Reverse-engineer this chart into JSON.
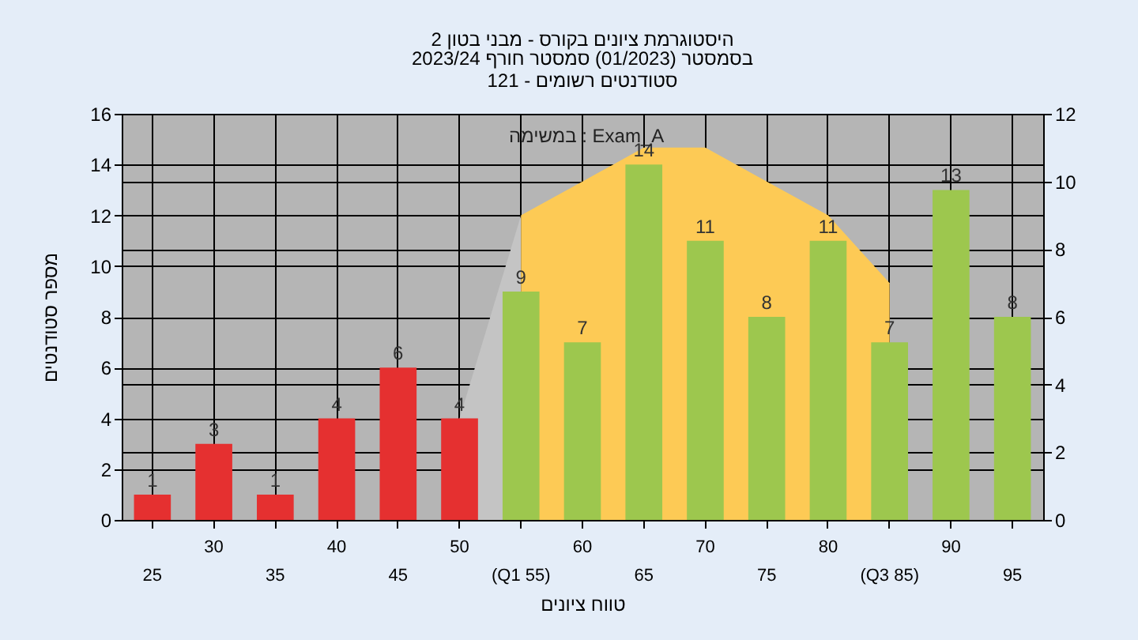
{
  "chart_data": {
    "type": "bar",
    "title": "היסטוגרמת ציונים בקורס - מבני בטון 2",
    "subtitle": "בסמסטר (01/2023) סמסטר חורף 2023/24\nסטודנטים רשומים - 121",
    "xlabel": "טווח ציונים",
    "ylabel": "מספר סטודנטים",
    "annotations": [
      "במשימה : Exam_A"
    ],
    "categories": [
      "25",
      "30",
      "35",
      "40",
      "45",
      "50",
      "(Q1 55)",
      "60",
      "65",
      "70",
      "75",
      "80",
      "(Q3 85)",
      "90",
      "95"
    ],
    "series": [
      {
        "type": "area",
        "axis": "y2",
        "color": "#c4c4c4",
        "values": [
          null,
          null,
          null,
          null,
          null,
          3,
          9,
          null,
          null,
          null,
          null,
          null,
          null,
          null,
          null
        ]
      },
      {
        "type": "area",
        "axis": "y2",
        "color": "#fdca55",
        "values": [
          null,
          null,
          null,
          null,
          null,
          null,
          9,
          10,
          11,
          11,
          10,
          9,
          7,
          null,
          null
        ]
      },
      {
        "colors": [
          "#e53030",
          "#e53030",
          "#e53030",
          "#e53030",
          "#e53030",
          "#e53030",
          "#9dc74e",
          "#9dc74e",
          "#9dc74e",
          "#9dc74e",
          "#9dc74e",
          "#9dc74e",
          "#9dc74e",
          "#9dc74e",
          "#9dc74e"
        ],
        "values": [
          1,
          3,
          1,
          4,
          6,
          4,
          9,
          7,
          14,
          11,
          8,
          11,
          7,
          13,
          8
        ],
        "value_labels": [
          "1",
          "3",
          "1",
          "4",
          "6",
          "4",
          "9",
          "7",
          "14",
          "11",
          "8",
          "11",
          "7",
          "13",
          "8"
        ]
      }
    ],
    "ylim": [
      0,
      16
    ],
    "yticks": [
      0,
      2,
      4,
      6,
      8,
      10,
      12,
      14,
      16
    ],
    "y2lim": [
      0,
      12
    ],
    "y2ticks": [
      0,
      2,
      4,
      6,
      8,
      10,
      12
    ],
    "grid": true
  }
}
